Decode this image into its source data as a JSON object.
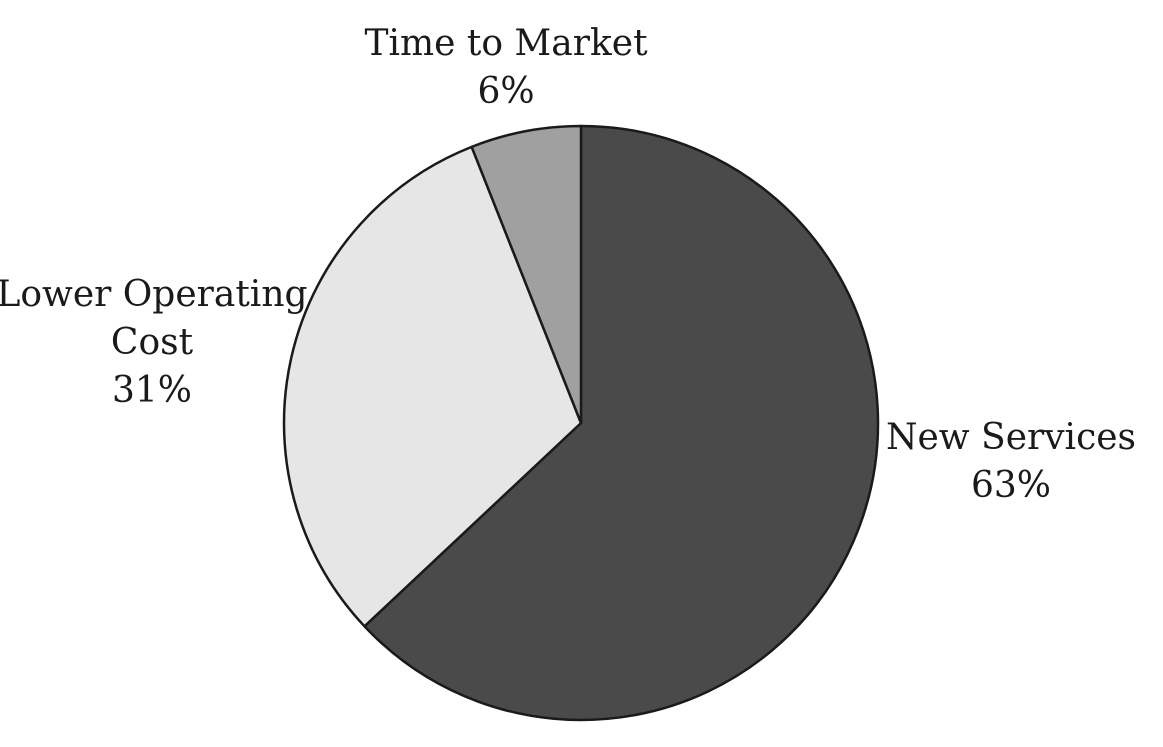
{
  "chart_data": {
    "type": "pie",
    "title": "",
    "start_angle_deg": 0,
    "direction": "clockwise",
    "slices": [
      {
        "name": "New Services",
        "value": 63,
        "label_lines": [
          "New Services"
        ],
        "value_label": "63%",
        "color": "#4a4a4a"
      },
      {
        "name": "Lower Operating Cost",
        "value": 31,
        "label_lines": [
          "Lower Operating",
          "Cost"
        ],
        "value_label": "31%",
        "color": "#e6e6e6"
      },
      {
        "name": "Time to Market",
        "value": 6,
        "label_lines": [
          "Time to Market"
        ],
        "value_label": "6%",
        "color": "#a0a0a0"
      }
    ],
    "outline_color": "#1a1a1a"
  }
}
